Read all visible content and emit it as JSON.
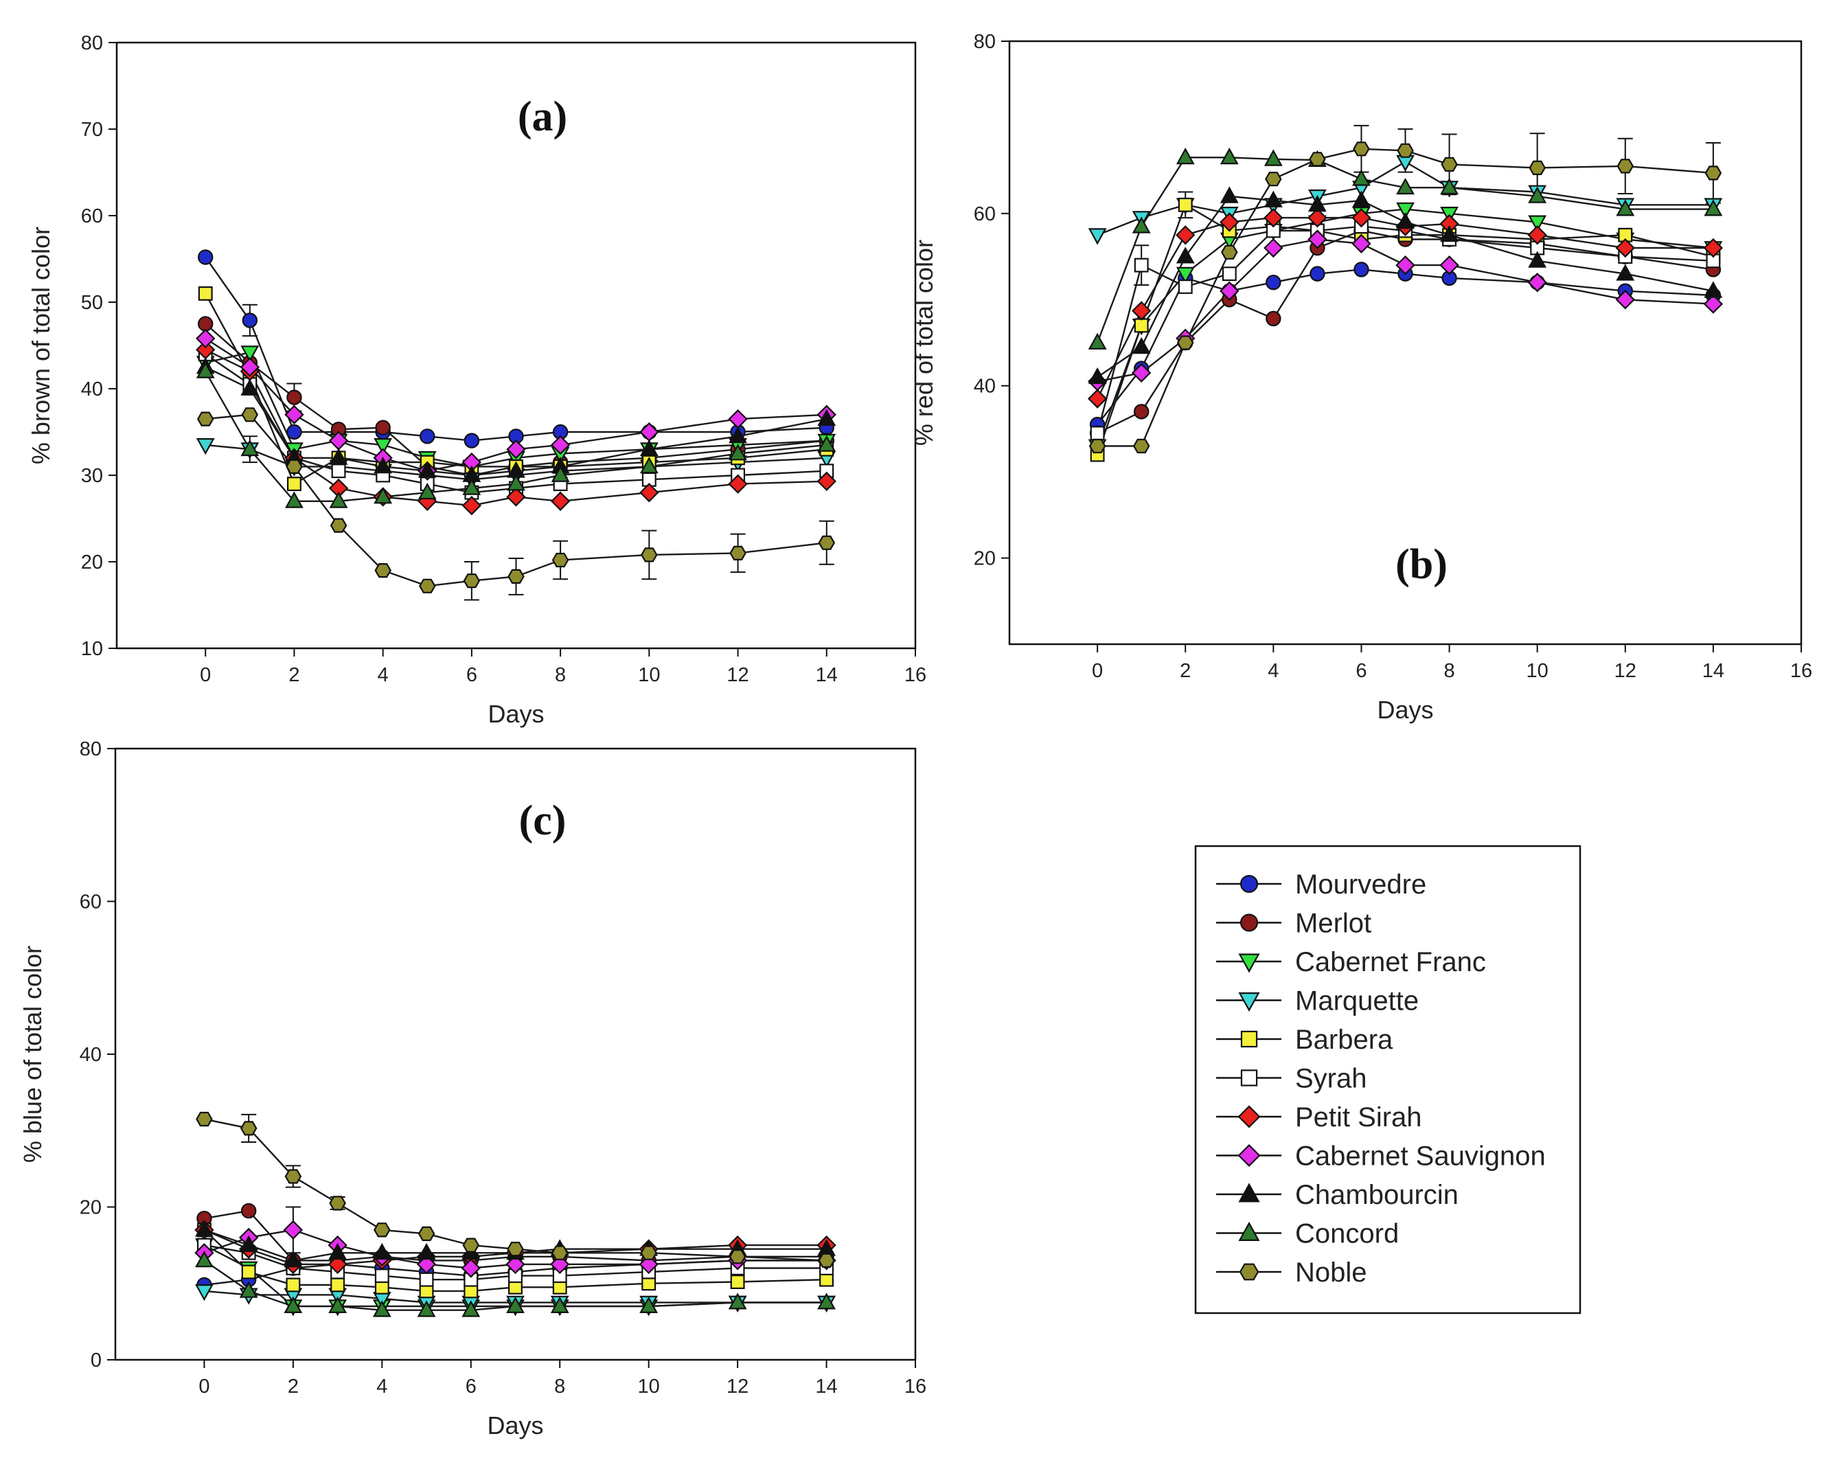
{
  "chart_data": [
    {
      "id": "a",
      "type": "line",
      "panel_label": "(a)",
      "xlabel": "Days",
      "ylabel": "% brown of total color",
      "xlim": [
        -2,
        16
      ],
      "ylim": [
        10,
        80
      ],
      "xticks": [
        0,
        2,
        4,
        6,
        8,
        10,
        12,
        14,
        16
      ],
      "yticks": [
        10,
        20,
        30,
        40,
        50,
        60,
        70,
        80
      ],
      "x": [
        0,
        1,
        2,
        3,
        4,
        5,
        6,
        7,
        8,
        10,
        12,
        14
      ],
      "series": [
        {
          "name": "Mourvedre",
          "values": [
            55.2,
            47.9,
            35.0,
            35.0,
            35.0,
            34.5,
            34.0,
            34.5,
            35.0,
            35.0,
            35.0,
            35.5
          ]
        },
        {
          "name": "Merlot",
          "values": [
            47.5,
            43.0,
            39.0,
            35.3,
            35.5,
            31.0,
            30.0,
            31.0,
            31.5,
            32.0,
            33.0,
            34.0
          ]
        },
        {
          "name": "Cabernet Franc",
          "values": [
            43.0,
            44.2,
            33.0,
            34.0,
            33.5,
            32.0,
            31.0,
            32.0,
            32.5,
            33.0,
            33.5,
            34.0
          ]
        },
        {
          "name": "Marquette",
          "values": [
            33.5,
            33.0,
            31.0,
            31.0,
            30.5,
            30.0,
            29.5,
            30.0,
            30.5,
            31.0,
            31.5,
            32.0
          ]
        },
        {
          "name": "Barbera",
          "values": [
            51.0,
            41.5,
            29.0,
            32.0,
            31.5,
            31.5,
            31.0,
            31.0,
            31.0,
            31.5,
            32.0,
            33.0
          ]
        },
        {
          "name": "Syrah",
          "values": [
            44.0,
            40.5,
            32.0,
            30.5,
            30.0,
            29.0,
            28.0,
            28.5,
            29.0,
            29.5,
            30.0,
            30.5
          ]
        },
        {
          "name": "Petit Sirah",
          "values": [
            44.5,
            42.0,
            32.0,
            28.5,
            27.5,
            27.0,
            26.5,
            27.5,
            27.0,
            28.0,
            29.0,
            29.3
          ]
        },
        {
          "name": "Cabernet Sauvignon",
          "values": [
            45.8,
            42.5,
            37.0,
            34.0,
            32.0,
            30.5,
            31.5,
            33.0,
            33.5,
            35.0,
            36.5,
            37.0
          ]
        },
        {
          "name": "Chambourcin",
          "values": [
            42.5,
            40.0,
            32.0,
            32.0,
            31.0,
            30.5,
            30.0,
            30.5,
            31.0,
            33.0,
            34.5,
            36.5
          ]
        },
        {
          "name": "Concord",
          "values": [
            42.0,
            33.0,
            27.0,
            27.0,
            27.5,
            28.0,
            28.5,
            29.0,
            30.0,
            31.0,
            32.5,
            33.5
          ]
        },
        {
          "name": "Noble",
          "values": [
            36.5,
            37.0,
            31.0,
            24.2,
            19.0,
            17.2,
            17.8,
            18.3,
            20.2,
            20.8,
            21.0,
            22.2
          ]
        }
      ],
      "errors": [
        {
          "series": "Noble",
          "x": [
            6,
            7,
            8,
            10,
            12,
            14
          ],
          "err": [
            2.2,
            2.1,
            2.2,
            2.8,
            2.2,
            2.5
          ]
        },
        {
          "series": "Mourvedre",
          "x": [
            1
          ],
          "err": [
            1.8
          ]
        },
        {
          "series": "Merlot",
          "x": [
            2
          ],
          "err": [
            1.6
          ]
        },
        {
          "series": "Concord",
          "x": [
            1
          ],
          "err": [
            1.5
          ]
        }
      ]
    },
    {
      "id": "b",
      "type": "line",
      "panel_label": "(b)",
      "xlabel": "Days",
      "ylabel": "% red of total color",
      "xlim": [
        -2,
        16
      ],
      "ylim": [
        10,
        80
      ],
      "xticks": [
        0,
        2,
        4,
        6,
        8,
        10,
        12,
        14,
        16
      ],
      "yticks": [
        20,
        40,
        60,
        80
      ],
      "x": [
        0,
        1,
        2,
        3,
        4,
        5,
        6,
        7,
        8,
        10,
        12,
        14
      ],
      "series": [
        {
          "name": "Mourvedre",
          "values": [
            35.5,
            42.0,
            52.5,
            51.0,
            52.0,
            53.0,
            53.5,
            53.0,
            52.5,
            52.0,
            51.0,
            50.5
          ]
        },
        {
          "name": "Merlot",
          "values": [
            34.5,
            37.0,
            45.0,
            50.0,
            47.8,
            56.0,
            58.0,
            57.0,
            57.0,
            56.5,
            55.0,
            53.5
          ]
        },
        {
          "name": "Cabernet Franc",
          "values": [
            33.0,
            47.0,
            53.0,
            57.0,
            58.0,
            59.0,
            60.0,
            60.5,
            60.0,
            59.0,
            57.0,
            56.0
          ]
        },
        {
          "name": "Marquette",
          "values": [
            57.5,
            59.5,
            61.0,
            60.0,
            61.0,
            62.0,
            63.0,
            66.0,
            63.0,
            62.5,
            61.0,
            61.0
          ]
        },
        {
          "name": "Barbera",
          "values": [
            32.0,
            47.0,
            61.0,
            58.0,
            58.5,
            58.0,
            57.0,
            57.5,
            57.5,
            57.0,
            57.5,
            55.0
          ]
        },
        {
          "name": "Syrah",
          "values": [
            34.5,
            54.0,
            51.5,
            53.0,
            58.0,
            58.0,
            58.5,
            58.0,
            57.0,
            56.0,
            55.0,
            54.5
          ]
        },
        {
          "name": "Petit Sirah",
          "values": [
            38.5,
            48.7,
            57.5,
            59.0,
            59.5,
            59.5,
            59.5,
            58.5,
            58.8,
            57.5,
            56.0,
            56.0
          ]
        },
        {
          "name": "Cabernet Sauvignon",
          "values": [
            40.5,
            41.5,
            45.5,
            51.0,
            56.0,
            57.0,
            56.5,
            54.0,
            54.0,
            52.0,
            50.0,
            49.5
          ]
        },
        {
          "name": "Chambourcin",
          "values": [
            41.0,
            44.5,
            55.0,
            62.0,
            61.5,
            61.0,
            61.5,
            59.0,
            57.5,
            54.5,
            53.0,
            51.0
          ]
        },
        {
          "name": "Concord",
          "values": [
            45.0,
            58.5,
            66.5,
            66.5,
            66.3,
            66.2,
            64.0,
            63.0,
            63.0,
            62.0,
            60.5,
            60.5
          ]
        },
        {
          "name": "Noble",
          "values": [
            33.0,
            33.0,
            45.0,
            55.5,
            64.0,
            66.3,
            67.5,
            67.3,
            65.7,
            65.3,
            65.5,
            64.7
          ]
        }
      ],
      "errors": [
        {
          "series": "Noble",
          "x": [
            6,
            7,
            8,
            10,
            12,
            14
          ],
          "err": [
            2.7,
            2.5,
            3.5,
            4.0,
            3.2,
            3.5
          ]
        },
        {
          "series": "Syrah",
          "x": [
            1
          ],
          "err": [
            2.3
          ]
        },
        {
          "series": "Barbera",
          "x": [
            2
          ],
          "err": [
            1.5
          ]
        }
      ]
    },
    {
      "id": "c",
      "type": "line",
      "panel_label": "(c)",
      "xlabel": "Days",
      "ylabel": "% blue of total color",
      "xlim": [
        -2,
        16
      ],
      "ylim": [
        0,
        80
      ],
      "xticks": [
        0,
        2,
        4,
        6,
        8,
        10,
        12,
        14,
        16
      ],
      "yticks": [
        0,
        20,
        40,
        60,
        80
      ],
      "x": [
        0,
        1,
        2,
        3,
        4,
        5,
        6,
        7,
        8,
        10,
        12,
        14
      ],
      "series": [
        {
          "name": "Mourvedre",
          "values": [
            9.8,
            10.5,
            12.0,
            12.5,
            12.0,
            11.5,
            11.0,
            11.5,
            12.0,
            12.5,
            13.0,
            13.0
          ]
        },
        {
          "name": "Merlot",
          "values": [
            18.5,
            19.5,
            13.0,
            13.0,
            13.5,
            13.0,
            13.0,
            13.5,
            13.5,
            13.0,
            13.5,
            13.5
          ]
        },
        {
          "name": "Cabernet Franc",
          "values": [
            15.0,
            12.0,
            7.0,
            7.0,
            7.0,
            7.0,
            7.0,
            7.0,
            7.0,
            7.0,
            7.5,
            7.5
          ]
        },
        {
          "name": "Marquette",
          "values": [
            9.0,
            8.5,
            8.5,
            8.5,
            8.0,
            7.5,
            7.5,
            7.5,
            7.5,
            7.5,
            7.5,
            7.5
          ]
        },
        {
          "name": "Barbera",
          "values": [
            17.0,
            11.5,
            9.8,
            9.8,
            9.5,
            9.0,
            9.0,
            9.5,
            9.5,
            10.0,
            10.2,
            10.5
          ]
        },
        {
          "name": "Syrah",
          "values": [
            15.0,
            14.0,
            12.0,
            11.5,
            11.0,
            10.5,
            10.5,
            11.0,
            11.0,
            11.5,
            12.0,
            12.0
          ]
        },
        {
          "name": "Petit Sirah",
          "values": [
            17.0,
            14.5,
            12.5,
            12.5,
            13.0,
            13.5,
            13.5,
            14.0,
            14.0,
            14.5,
            15.0,
            15.0
          ]
        },
        {
          "name": "Cabernet Sauvignon",
          "values": [
            14.0,
            16.0,
            17.0,
            15.0,
            13.5,
            12.5,
            12.0,
            12.5,
            12.5,
            12.5,
            13.0,
            13.0
          ]
        },
        {
          "name": "Chambourcin",
          "values": [
            17.0,
            15.0,
            13.0,
            14.0,
            14.0,
            14.0,
            14.0,
            14.0,
            14.5,
            14.5,
            14.5,
            14.5
          ]
        },
        {
          "name": "Concord",
          "values": [
            13.0,
            9.0,
            7.0,
            7.0,
            6.5,
            6.5,
            6.5,
            7.0,
            7.0,
            7.0,
            7.5,
            7.5
          ]
        },
        {
          "name": "Noble",
          "values": [
            31.5,
            30.3,
            24.0,
            20.5,
            17.0,
            16.5,
            15.0,
            14.5,
            14.0,
            14.0,
            13.5,
            13.0
          ]
        }
      ],
      "errors": [
        {
          "series": "Noble",
          "x": [
            1,
            2,
            3
          ],
          "err": [
            1.8,
            1.4,
            0.8
          ]
        },
        {
          "series": "Cabernet Sauvignon",
          "x": [
            2
          ],
          "err": [
            3.0
          ]
        }
      ]
    }
  ],
  "legend": {
    "placement": "bottom-right",
    "entries": [
      {
        "name": "Mourvedre",
        "color": "#1f2bc9",
        "marker": "circle"
      },
      {
        "name": "Merlot",
        "color": "#8b1a1a",
        "marker": "circle"
      },
      {
        "name": "Cabernet Franc",
        "color": "#32e040",
        "marker": "triangle-down"
      },
      {
        "name": "Marquette",
        "color": "#3fd6d6",
        "marker": "triangle-down"
      },
      {
        "name": "Barbera",
        "color": "#f5f03a",
        "marker": "square"
      },
      {
        "name": "Syrah",
        "color": "#ffffff",
        "marker": "square"
      },
      {
        "name": "Petit Sirah",
        "color": "#e8201e",
        "marker": "diamond"
      },
      {
        "name": "Cabernet Sauvignon",
        "color": "#e22ee8",
        "marker": "diamond"
      },
      {
        "name": "Chambourcin",
        "color": "#111111",
        "marker": "triangle-up"
      },
      {
        "name": "Concord",
        "color": "#2f7a2f",
        "marker": "triangle-up"
      },
      {
        "name": "Noble",
        "color": "#8f8c2e",
        "marker": "hexagon"
      }
    ]
  }
}
